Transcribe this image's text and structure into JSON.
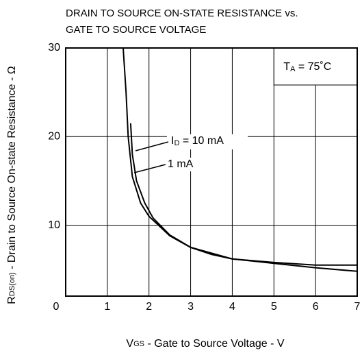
{
  "chart_data": {
    "type": "line",
    "title": [
      "DRAIN TO SOURCE ON-STATE RESISTANCE vs.",
      "GATE TO SOURCE VOLTAGE"
    ],
    "xlabel": {
      "main": "V",
      "sub": "GS",
      "rest": " - Gate to Source Voltage  - V"
    },
    "ylabel": {
      "main": "R",
      "sub": "DS(on)",
      "rest": " - Drain to Source On-state Resistance - Ω"
    },
    "annotations": {
      "temp": {
        "main": "T",
        "sub": "A",
        "rest": " = 75˚C"
      },
      "id": {
        "main": "I",
        "sub": "D",
        "rest": " = 10 mA"
      },
      "id2": "1 mA"
    },
    "xlim": [
      0,
      7
    ],
    "ylim": [
      2,
      30
    ],
    "xticks": [
      0,
      1,
      2,
      3,
      4,
      5,
      6,
      7
    ],
    "yticks": [
      10,
      20,
      30
    ],
    "grid": true,
    "series": [
      {
        "name": "10 mA",
        "color": "#000000",
        "x": [
          1.56,
          1.6,
          1.7,
          1.9,
          2.1,
          2.5,
          3,
          4,
          5,
          6,
          7
        ],
        "values": [
          21.5,
          18,
          15,
          12.5,
          10.8,
          8.9,
          7.5,
          6.2,
          5.8,
          5.5,
          5.5
        ]
      },
      {
        "name": "1 mA",
        "color": "#000000",
        "x": [
          1.38,
          1.45,
          1.5,
          1.6,
          1.8,
          2,
          2.5,
          3,
          3.5,
          4,
          5,
          6,
          7
        ],
        "values": [
          30,
          25,
          20,
          15.5,
          12.5,
          11,
          8.8,
          7.5,
          6.7,
          6.2,
          5.7,
          5.2,
          4.8
        ]
      }
    ]
  }
}
